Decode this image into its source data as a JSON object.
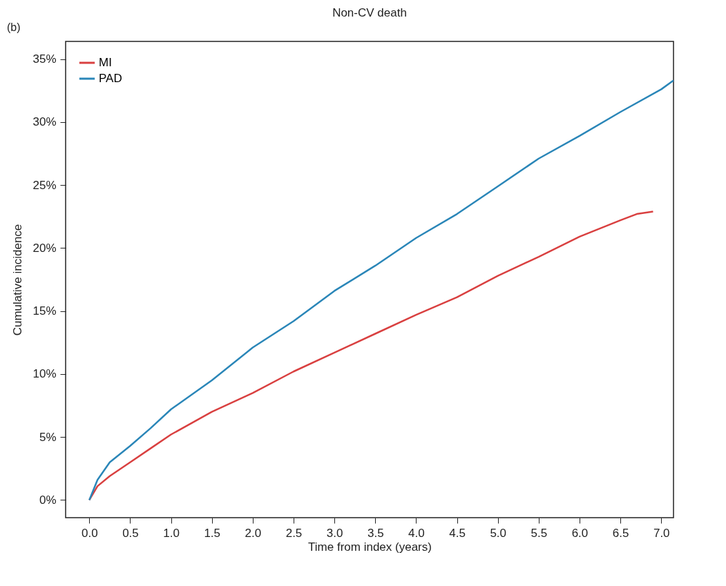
{
  "chart_data": {
    "type": "line",
    "title": "Non-CV death",
    "xlabel": "Time from index (years)",
    "ylabel": "Cumulative incidence",
    "annotations": [
      "(b)"
    ],
    "legend": "top left",
    "grid": false,
    "marker": "none",
    "line_style": "solid",
    "xlim": [
      -0.29,
      7.15
    ],
    "ylim": [
      -1.4,
      36.4
    ],
    "xticks": [
      {
        "value": 0,
        "label": "0.0"
      },
      {
        "value": 0.5,
        "label": "0.5"
      },
      {
        "value": 1,
        "label": "1.0"
      },
      {
        "value": 1.5,
        "label": "1.5"
      },
      {
        "value": 2,
        "label": "2.0"
      },
      {
        "value": 2.5,
        "label": "2.5"
      },
      {
        "value": 3,
        "label": "3.0"
      },
      {
        "value": 3.5,
        "label": "3.5"
      },
      {
        "value": 4,
        "label": "4.0"
      },
      {
        "value": 4.5,
        "label": "4.5"
      },
      {
        "value": 5,
        "label": "5.0"
      },
      {
        "value": 5.5,
        "label": "5.5"
      },
      {
        "value": 6,
        "label": "6.0"
      },
      {
        "value": 6.5,
        "label": "6.5"
      },
      {
        "value": 7,
        "label": "7.0"
      }
    ],
    "yticks": [
      {
        "value": 0,
        "label": "0%"
      },
      {
        "value": 5,
        "label": "5%"
      },
      {
        "value": 10,
        "label": "10%"
      },
      {
        "value": 15,
        "label": "15%"
      },
      {
        "value": 20,
        "label": "20%"
      },
      {
        "value": 25,
        "label": "25%"
      },
      {
        "value": 30,
        "label": "30%"
      },
      {
        "value": 35,
        "label": "35%"
      }
    ],
    "series": [
      {
        "name": "MI",
        "color": "#d94040",
        "x": [
          0,
          0.1,
          0.25,
          0.5,
          0.75,
          1,
          1.5,
          2,
          2.5,
          3,
          3.5,
          4,
          4.5,
          5,
          5.5,
          6,
          6.5,
          6.7,
          6.9
        ],
        "values": [
          0,
          1.1,
          1.9,
          3.0,
          4.1,
          5.2,
          7.0,
          8.5,
          10.2,
          11.7,
          13.2,
          14.7,
          16.1,
          17.8,
          19.3,
          20.9,
          22.2,
          22.7,
          22.9
        ]
      },
      {
        "name": "PAD",
        "color": "#2a86b8",
        "x": [
          0,
          0.1,
          0.25,
          0.5,
          0.75,
          1,
          1.5,
          2,
          2.5,
          3,
          3.5,
          4,
          4.5,
          5,
          5.5,
          6,
          6.5,
          7,
          7.15
        ],
        "values": [
          0,
          1.6,
          3.0,
          4.3,
          5.7,
          7.2,
          9.5,
          12.1,
          14.2,
          16.6,
          18.6,
          20.8,
          22.7,
          24.9,
          27.1,
          28.9,
          30.8,
          32.6,
          33.3
        ]
      }
    ]
  }
}
